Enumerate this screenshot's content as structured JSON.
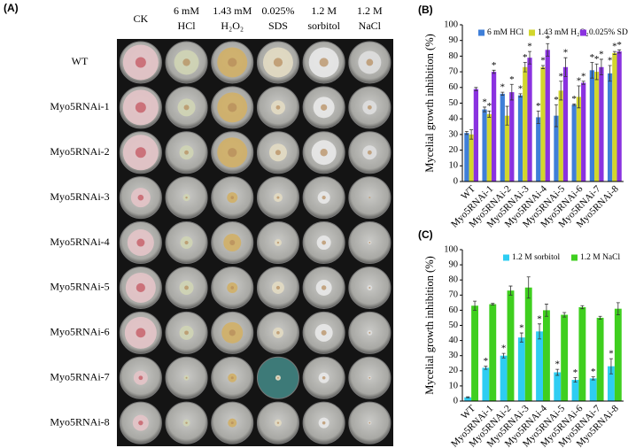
{
  "photo_panel": {
    "label": "(A)",
    "columns": [
      [
        "CK"
      ],
      [
        "6 mM",
        "HCl"
      ],
      [
        "1.43 mM",
        "H₂O₂"
      ],
      [
        "0.025%",
        "SDS"
      ],
      [
        "1.2 M",
        "sorbitol"
      ],
      [
        "1.2 M",
        "NaCl"
      ]
    ],
    "rows": [
      "WT",
      "Myo5RNAi-1",
      "Myo5RNAi-2",
      "Myo5RNAi-3",
      "Myo5RNAi-4",
      "Myo5RNAi-5",
      "Myo5RNAi-6",
      "Myo5RNAi-7",
      "Myo5RNAi-8"
    ]
  },
  "chart_data": [
    {
      "type": "bar",
      "label": "(B)",
      "y_label": "Mycelial growth inhibition (%)",
      "categories": [
        "WT",
        "Myo5RNAi-1",
        "Myo5RNAi-2",
        "Myo5RNAi-3",
        "Myo5RNAi-4",
        "Myo5RNAi-5",
        "Myo5RNAi-6",
        "Myo5RNAi-7",
        "Myo5RNAi-8"
      ],
      "series": [
        {
          "name": "6 mM HCl",
          "color": "#3f7fd8",
          "values": [
            31,
            46,
            56,
            55,
            41,
            42,
            49,
            71,
            69
          ],
          "errors": [
            1,
            1.5,
            1,
            1,
            4,
            7,
            0.5,
            5,
            5
          ],
          "annotations": [
            null,
            "*",
            "*",
            "*",
            "*",
            "*",
            "*",
            "*",
            "*"
          ]
        },
        {
          "name": "1.43 mM H₂O₂",
          "color": "#d2d62c",
          "values": [
            30,
            43,
            42,
            73,
            73,
            58,
            54,
            70,
            82
          ],
          "errors": [
            3,
            2,
            6,
            3,
            1,
            6,
            7,
            5,
            1
          ],
          "annotations": [
            null,
            "*",
            null,
            "*",
            "*",
            "*",
            "*",
            "*",
            "*"
          ]
        },
        {
          "name": "0.025% SDS",
          "color": "#8a32e0",
          "values": [
            59,
            70,
            57,
            79,
            84,
            73,
            63,
            73,
            83
          ],
          "errors": [
            1,
            1,
            5,
            4,
            4,
            6,
            1,
            5,
            1
          ],
          "annotations": [
            null,
            "*",
            "*",
            "*",
            "*",
            "*",
            "*",
            "*",
            "*"
          ]
        }
      ],
      "ylim": [
        0,
        100
      ],
      "yticks": [
        0,
        10,
        20,
        30,
        40,
        50,
        60,
        70,
        80,
        90,
        100
      ],
      "legend": "top"
    },
    {
      "type": "bar",
      "label": "(C)",
      "y_label": "Mycelial growth inhibition (%)",
      "categories": [
        "WT",
        "Myo5RNAi-1",
        "Myo5RNAi-2",
        "Myo5RNAi-3",
        "Myo5RNAi-4",
        "Myo5RNAi-5",
        "Myo5RNAi-6",
        "Myo5RNAi-7",
        "Myo5RNAi-8"
      ],
      "series": [
        {
          "name": "1.2 M sorbitol",
          "color": "#2ecdf2",
          "values": [
            2.5,
            22,
            30,
            42,
            46,
            19,
            14,
            15,
            23
          ],
          "errors": [
            0.3,
            1,
            1.5,
            3,
            5,
            2,
            1.5,
            1,
            5
          ],
          "annotations": [
            null,
            "*",
            "*",
            "*",
            "*",
            "*",
            "*",
            "*",
            "*"
          ]
        },
        {
          "name": "1.2 M NaCl",
          "color": "#3fcf1f",
          "values": [
            63,
            64,
            73,
            75,
            60,
            57,
            62,
            55,
            61
          ],
          "errors": [
            3,
            0.5,
            3,
            7,
            4,
            1.5,
            1,
            1,
            4
          ]
        }
      ],
      "ylim": [
        0,
        100
      ],
      "yticks": [
        0,
        10,
        20,
        30,
        40,
        50,
        60,
        70,
        80,
        90,
        100
      ],
      "legend": "top"
    }
  ]
}
